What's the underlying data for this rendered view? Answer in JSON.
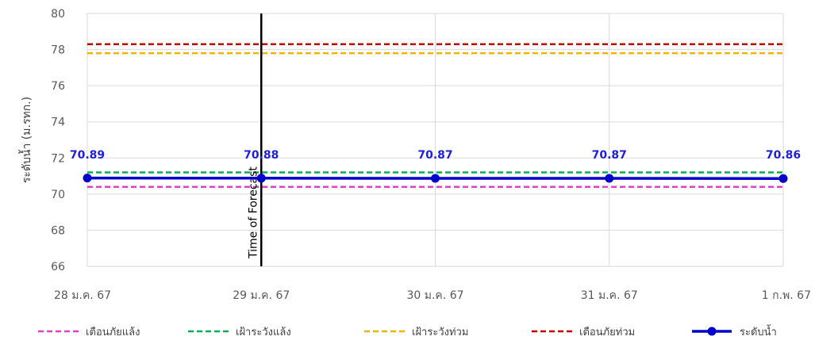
{
  "chart_data": {
    "type": "line",
    "title": "",
    "ylabel": "ระดับน้ำ (ม.รทก.)",
    "xlabel": "",
    "categories": [
      "28 ม.ค. 67",
      "29 ม.ค. 67",
      "30 ม.ค. 67",
      "31 ม.ค. 67",
      "1 ก.พ. 67"
    ],
    "ylim": [
      66,
      80
    ],
    "yticks": [
      66,
      68,
      70,
      72,
      74,
      76,
      78,
      80
    ],
    "grid": true,
    "legend_position": "bottom",
    "series": [
      {
        "name": "ระดับน้ำ",
        "values": [
          70.89,
          70.88,
          70.87,
          70.87,
          70.86
        ],
        "labels": [
          "70.89",
          "70.88",
          "70.87",
          "70.87",
          "70.86"
        ],
        "color": "#0000cc",
        "style": "solid-markers"
      }
    ],
    "reference_lines": [
      {
        "name": "เตือนภัยแล้ง",
        "value": 70.4,
        "color": "#e040c8",
        "style": "dashed"
      },
      {
        "name": "เฝ้าระวังแล้ง",
        "value": 71.2,
        "color": "#00b050",
        "style": "dashed"
      },
      {
        "name": "เฝ้าระวังท่วม",
        "value": 77.8,
        "color": "#f0b400",
        "style": "dashed"
      },
      {
        "name": "เตือนภัยท่วม",
        "value": 78.3,
        "color": "#c00000",
        "style": "dashed"
      }
    ],
    "forecast_marker": {
      "category": "29 ม.ค. 67",
      "label": "Time of Forecast",
      "color": "#000000"
    },
    "legend_order": [
      "เตือนภัยแล้ง",
      "เฝ้าระวังแล้ง",
      "เฝ้าระวังท่วม",
      "เตือนภัยท่วม",
      "ระดับน้ำ"
    ]
  }
}
